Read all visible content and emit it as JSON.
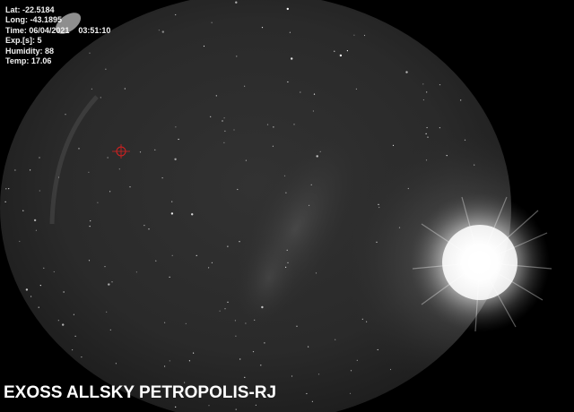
{
  "overlay": {
    "lat": "Lat: -22.5184",
    "long": "Long: -43.1895",
    "time": "Time: 06/04/2021    03:51:10",
    "exposure": "Exp.[s]: 5",
    "humidity": "Humidity: 88",
    "temp": "Temp: 17.06"
  },
  "caption": "EXOSS ALLSKY PETROPOLIS-RJ",
  "colors": {
    "background": "#000000",
    "sky": "#2a2a2a",
    "text": "#f2f2f2",
    "target_marker": "#d62020"
  }
}
